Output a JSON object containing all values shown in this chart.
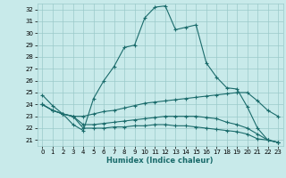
{
  "xlabel": "Humidex (Indice chaleur)",
  "bg_color": "#c8eaea",
  "grid_color": "#9bcaca",
  "line_color": "#1a6b6b",
  "xlim": [
    -0.5,
    23.5
  ],
  "ylim": [
    20.5,
    32.5
  ],
  "xticks": [
    0,
    1,
    2,
    3,
    4,
    5,
    6,
    7,
    8,
    9,
    10,
    11,
    12,
    13,
    14,
    15,
    16,
    17,
    18,
    19,
    20,
    21,
    22,
    23
  ],
  "yticks": [
    21,
    22,
    23,
    24,
    25,
    26,
    27,
    28,
    29,
    30,
    31,
    32
  ],
  "lines": [
    [
      24.8,
      23.9,
      23.2,
      22.3,
      21.8,
      24.5,
      26.0,
      27.2,
      28.8,
      29.0,
      31.3,
      32.2,
      32.3,
      30.3,
      30.5,
      30.7,
      27.5,
      26.3,
      25.4,
      25.3,
      23.8,
      22.0,
      21.0,
      20.8
    ],
    [
      24.0,
      23.5,
      23.2,
      23.0,
      23.0,
      23.2,
      23.4,
      23.5,
      23.7,
      23.9,
      24.1,
      24.2,
      24.3,
      24.4,
      24.5,
      24.6,
      24.7,
      24.8,
      24.9,
      25.0,
      25.0,
      24.3,
      23.5,
      23.0
    ],
    [
      24.0,
      23.5,
      23.2,
      23.0,
      22.3,
      22.3,
      22.4,
      22.5,
      22.6,
      22.7,
      22.8,
      22.9,
      23.0,
      23.0,
      23.0,
      23.0,
      22.9,
      22.8,
      22.5,
      22.3,
      22.0,
      21.5,
      21.0,
      20.8
    ],
    [
      24.0,
      23.5,
      23.2,
      23.0,
      22.0,
      22.0,
      22.0,
      22.1,
      22.1,
      22.2,
      22.2,
      22.3,
      22.3,
      22.2,
      22.2,
      22.1,
      22.0,
      21.9,
      21.8,
      21.7,
      21.5,
      21.1,
      21.0,
      20.8
    ]
  ]
}
